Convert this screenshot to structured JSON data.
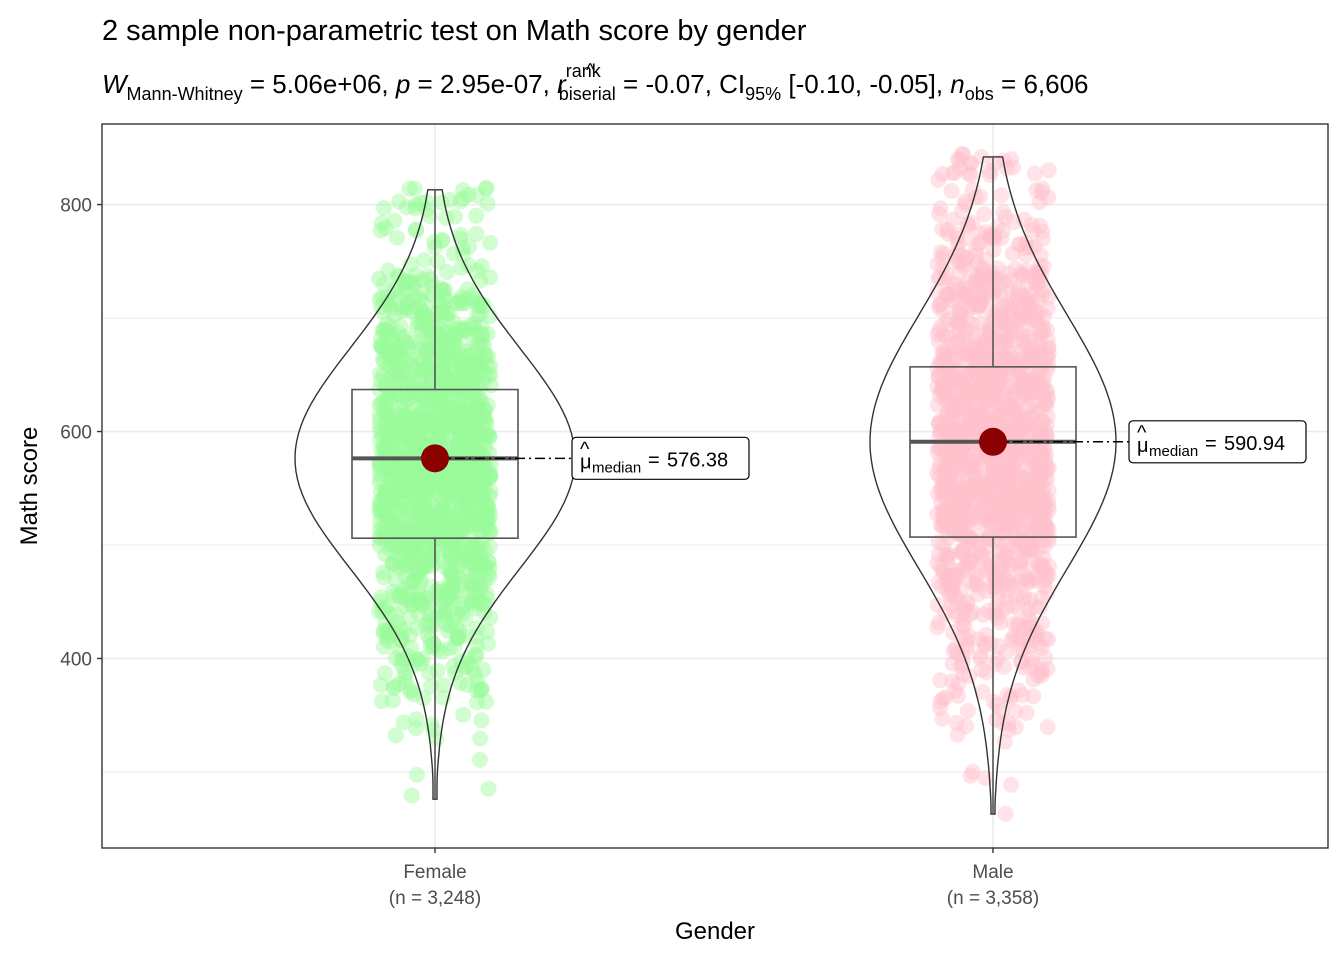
{
  "chart_data": {
    "type": "violin-box-scatter",
    "title": "2 sample non-parametric test on Math score by gender",
    "subtitle": {
      "statistic_symbol": "W",
      "statistic_subscript": "Mann-Whitney",
      "statistic_value": "5.06e+06",
      "p_symbol": "p",
      "p_value": "2.95e-07",
      "effect_symbol": "r",
      "effect_superscript": "rank",
      "effect_subscript": "biserial",
      "effect_value": "-0.07",
      "ci_symbol": "CI",
      "ci_subscript": "95%",
      "ci_value": "[-0.10, -0.05]",
      "n_symbol": "n",
      "n_subscript": "obs",
      "n_value": "6,606"
    },
    "xlabel": "Gender",
    "ylabel": "Math score",
    "ylim": [
      233,
      871
    ],
    "y_ticks": [
      400,
      600,
      800
    ],
    "y_minor_gridlines": [
      300,
      500,
      700
    ],
    "grid": true,
    "categories": [
      "Female",
      "Male"
    ],
    "category_counts": [
      "(n = 3,248)",
      "(n = 3,358)"
    ],
    "groups": [
      {
        "name": "Female",
        "n_label": "(n = 3,248)",
        "point_color": "#98fb98",
        "median": 576.38,
        "q1": 506,
        "q3": 637,
        "whisker_low": 276,
        "whisker_high": 813,
        "points_min": 278,
        "points_max": 815,
        "median_label_symbol": "μ",
        "median_label_subscript": "median",
        "median_label_value": "576.38"
      },
      {
        "name": "Male",
        "n_label": "(n = 3,358)",
        "point_color": "#ffc0cb",
        "median": 590.94,
        "q1": 507,
        "q3": 657,
        "whisker_low": 263,
        "whisker_high": 842,
        "points_min": 262,
        "points_max": 845,
        "median_label_symbol": "μ",
        "median_label_subscript": "median",
        "median_label_value": "590.94"
      }
    ],
    "median_point_color": "#8b0000"
  }
}
